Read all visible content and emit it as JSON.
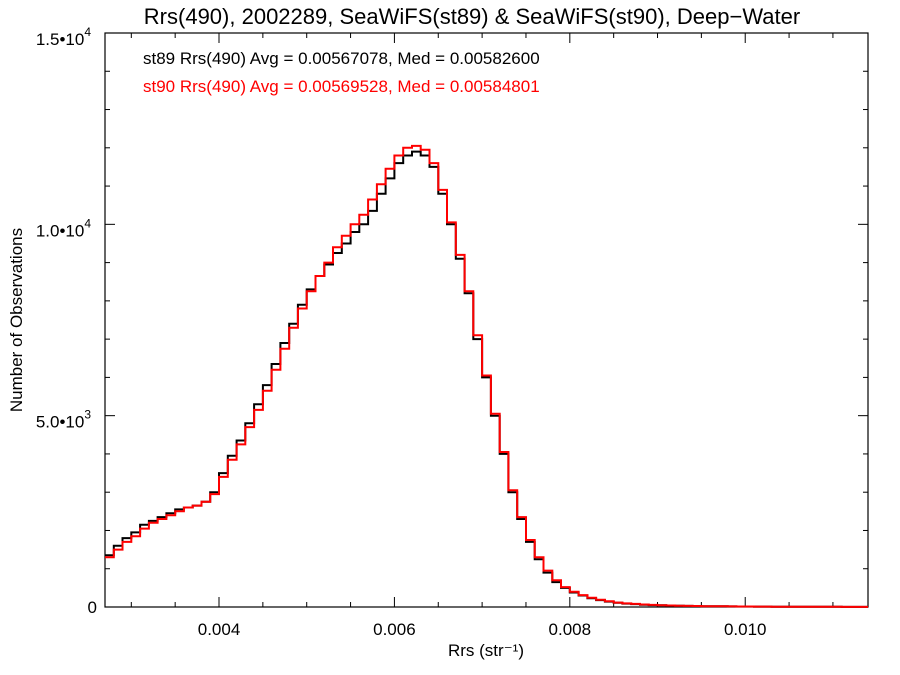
{
  "chart_data": {
    "type": "line",
    "step": true,
    "title": "Rrs(490), 2002289, SeaWiFS(st89) & SeaWiFS(st90), Deep−Water",
    "xlabel": "Rrs (str⁻¹)",
    "ylabel": "Number of Observations",
    "xlim": [
      0.0027,
      0.0114
    ],
    "ylim": [
      0,
      15000
    ],
    "x_ticks": [
      0.004,
      0.006,
      0.008,
      0.01
    ],
    "x_tick_labels": [
      "0.004",
      "0.006",
      "0.008",
      "0.010"
    ],
    "y_ticks": [
      0,
      5000,
      10000,
      15000
    ],
    "y_tick_labels": [
      {
        "mantissa": "0",
        "exponent": ""
      },
      {
        "mantissa": "5.0•10",
        "exponent": "3"
      },
      {
        "mantissa": "1.0•10",
        "exponent": "4"
      },
      {
        "mantissa": "1.5•10",
        "exponent": "4"
      }
    ],
    "annotations": [
      {
        "text": "st89 Rrs(490) Avg = 0.00567078, Med = 0.00582600",
        "color": "#000000"
      },
      {
        "text": "st90 Rrs(490) Avg = 0.00569528, Med = 0.00584801",
        "color": "#ff0000"
      }
    ],
    "series": [
      {
        "name": "st89",
        "color": "#000000",
        "x": [
          0.0027,
          0.0028,
          0.0029,
          0.003,
          0.0031,
          0.0032,
          0.0033,
          0.0034,
          0.0035,
          0.0036,
          0.0037,
          0.0038,
          0.0039,
          0.004,
          0.0041,
          0.0042,
          0.0043,
          0.0044,
          0.0045,
          0.0046,
          0.0047,
          0.0048,
          0.0049,
          0.005,
          0.0051,
          0.0052,
          0.0053,
          0.0054,
          0.0055,
          0.0056,
          0.0057,
          0.0058,
          0.0059,
          0.006,
          0.0061,
          0.0062,
          0.0063,
          0.0064,
          0.0065,
          0.0066,
          0.0067,
          0.0068,
          0.0069,
          0.007,
          0.0071,
          0.0072,
          0.0073,
          0.0074,
          0.0075,
          0.0076,
          0.0077,
          0.0078,
          0.0079,
          0.008,
          0.0081,
          0.0082,
          0.0083,
          0.0084,
          0.0085,
          0.0086,
          0.0087,
          0.0088,
          0.0089,
          0.009,
          0.0091,
          0.0092,
          0.0093,
          0.0094,
          0.0095,
          0.0096,
          0.0097,
          0.0098,
          0.0099,
          0.01,
          0.0101,
          0.0102,
          0.0103,
          0.0104,
          0.0105,
          0.0106,
          0.0107,
          0.0108,
          0.0109,
          0.011,
          0.0111,
          0.0112,
          0.0113
        ],
        "y": [
          1350,
          1600,
          1800,
          1950,
          2150,
          2250,
          2350,
          2450,
          2550,
          2600,
          2650,
          2750,
          3000,
          3500,
          3950,
          4350,
          4800,
          5300,
          5800,
          6350,
          6900,
          7400,
          7900,
          8300,
          8650,
          8950,
          9250,
          9500,
          9800,
          10000,
          10350,
          10800,
          11200,
          11600,
          11800,
          11900,
          11800,
          11500,
          10800,
          10000,
          9100,
          8200,
          7000,
          6000,
          5000,
          4000,
          3000,
          2300,
          1700,
          1250,
          900,
          650,
          500,
          380,
          300,
          230,
          180,
          140,
          110,
          90,
          75,
          60,
          50,
          45,
          40,
          35,
          30,
          25,
          22,
          20,
          18,
          16,
          14,
          12,
          10,
          10,
          8,
          8,
          6,
          6,
          5,
          5,
          4,
          4,
          3,
          3,
          2
        ]
      },
      {
        "name": "st90",
        "color": "#ff0000",
        "x": [
          0.0027,
          0.0028,
          0.0029,
          0.003,
          0.0031,
          0.0032,
          0.0033,
          0.0034,
          0.0035,
          0.0036,
          0.0037,
          0.0038,
          0.0039,
          0.004,
          0.0041,
          0.0042,
          0.0043,
          0.0044,
          0.0045,
          0.0046,
          0.0047,
          0.0048,
          0.0049,
          0.005,
          0.0051,
          0.0052,
          0.0053,
          0.0054,
          0.0055,
          0.0056,
          0.0057,
          0.0058,
          0.0059,
          0.006,
          0.0061,
          0.0062,
          0.0063,
          0.0064,
          0.0065,
          0.0066,
          0.0067,
          0.0068,
          0.0069,
          0.007,
          0.0071,
          0.0072,
          0.0073,
          0.0074,
          0.0075,
          0.0076,
          0.0077,
          0.0078,
          0.0079,
          0.008,
          0.0081,
          0.0082,
          0.0083,
          0.0084,
          0.0085,
          0.0086,
          0.0087,
          0.0088,
          0.0089,
          0.009,
          0.0091,
          0.0092,
          0.0093,
          0.0094,
          0.0095,
          0.0096,
          0.0097,
          0.0098,
          0.0099,
          0.01,
          0.0101,
          0.0102,
          0.0103,
          0.0104,
          0.0105,
          0.0106,
          0.0107,
          0.0108,
          0.0109,
          0.011,
          0.0111,
          0.0112,
          0.0113
        ],
        "y": [
          1300,
          1500,
          1700,
          1850,
          2050,
          2200,
          2300,
          2400,
          2500,
          2600,
          2650,
          2750,
          2950,
          3400,
          3850,
          4250,
          4700,
          5150,
          5650,
          6200,
          6750,
          7300,
          7800,
          8250,
          8650,
          9000,
          9400,
          9700,
          10000,
          10250,
          10650,
          11050,
          11450,
          11800,
          12000,
          12050,
          11950,
          11600,
          10900,
          10050,
          9200,
          8250,
          7100,
          6050,
          5050,
          4050,
          3050,
          2350,
          1750,
          1300,
          950,
          700,
          520,
          400,
          310,
          240,
          190,
          150,
          115,
          95,
          80,
          65,
          55,
          47,
          40,
          35,
          30,
          26,
          22,
          20,
          18,
          16,
          14,
          12,
          11,
          10,
          9,
          8,
          7,
          6,
          5,
          5,
          4,
          4,
          3,
          3,
          2
        ]
      }
    ]
  }
}
